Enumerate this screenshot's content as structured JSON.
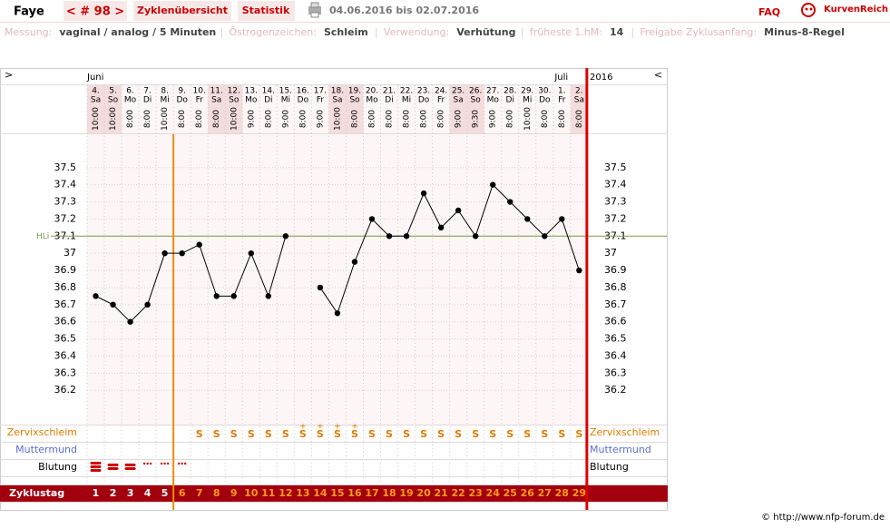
{
  "header": {
    "name": "Faye",
    "cycle_nav": "< # 98 >",
    "tabs": [
      "Zyklenübersicht",
      "Statistik"
    ],
    "period": "04.06.2016 bis 02.07.2016",
    "faq": "FAQ",
    "brand": "KurvenReich"
  },
  "info": [
    {
      "label": "Messung:",
      "value": "vaginal / analog / 5 Minuten"
    },
    {
      "label": "Östrogenzeichen:",
      "value": "Schleim"
    },
    {
      "label": "Verwendung:",
      "value": "Verhütung"
    },
    {
      "label": "früheste 1.hM:",
      "value": "14"
    },
    {
      "label": "Freigabe Zyklusanfang:",
      "value": "Minus-8-Regel"
    }
  ],
  "chart_data": {
    "type": "line",
    "nav_left": ">",
    "nav_right": "<",
    "months": [
      "Juni",
      "Juli"
    ],
    "year": "2016",
    "categories": [
      "4.",
      "5.",
      "6.",
      "7.",
      "8.",
      "9.",
      "10.",
      "11.",
      "12.",
      "13.",
      "14.",
      "15.",
      "16.",
      "17.",
      "18.",
      "19.",
      "20.",
      "21.",
      "22.",
      "23.",
      "24.",
      "25.",
      "26.",
      "27.",
      "28.",
      "29.",
      "30.",
      "1.",
      "2."
    ],
    "weekdays": [
      "Sa",
      "So",
      "Mo",
      "Di",
      "Mi",
      "Do",
      "Fr",
      "Sa",
      "So",
      "Mo",
      "Di",
      "Mi",
      "Do",
      "Fr",
      "Sa",
      "So",
      "Mo",
      "Di",
      "Mi",
      "Do",
      "Fr",
      "Sa",
      "So",
      "Mo",
      "Di",
      "Mi",
      "Do",
      "Fr",
      "Sa"
    ],
    "times": [
      "10:00",
      "10:00",
      "8:00",
      "8:00",
      "10:00",
      "8:00",
      "8:00",
      "8:00",
      "10:00",
      "9:00",
      "8:00",
      "9:00",
      "8:00",
      "9:00",
      "10:00",
      "8:00",
      "8:00",
      "8:00",
      "8:00",
      "8:00",
      "8:00",
      "9:00",
      "9:30",
      "9:00",
      "8:00",
      "10:00",
      "8:00",
      "8:00",
      "8:00"
    ],
    "series": [
      {
        "name": "Temperatur",
        "color": "#000000",
        "values": [
          36.75,
          36.7,
          36.6,
          36.7,
          37.0,
          37.0,
          37.05,
          36.75,
          36.75,
          37.0,
          36.75,
          37.1,
          null,
          36.8,
          36.65,
          36.95,
          37.2,
          37.1,
          37.1,
          37.35,
          37.15,
          37.25,
          37.1,
          37.4,
          37.3,
          37.2,
          37.1,
          37.2,
          36.9
        ]
      }
    ],
    "ylim": [
      36.0,
      37.7
    ],
    "yticks": [
      36.2,
      36.3,
      36.4,
      36.5,
      36.6,
      36.7,
      36.8,
      36.9,
      37,
      37.1,
      37.2,
      37.3,
      37.4,
      37.5
    ],
    "grid": true,
    "hli": {
      "label": "HLi",
      "value": 37.1,
      "color": "#7a9a4a"
    },
    "rows": {
      "mucus_label": "Zervixschleim",
      "cervix_label": "Muttermund",
      "bleeding_label": "Blutung",
      "cycle_label": "Zyklustag"
    },
    "mucus": [
      null,
      null,
      null,
      null,
      null,
      null,
      "S",
      "S",
      "S",
      "S",
      "S",
      "S",
      "S",
      "S",
      "S",
      "S",
      "S",
      "S",
      "S",
      "S",
      "S",
      "S",
      "S",
      "S",
      "S",
      "S",
      "S",
      "S",
      "S"
    ],
    "mucus_plus": [
      null,
      null,
      null,
      null,
      null,
      null,
      null,
      null,
      null,
      null,
      null,
      null,
      "+",
      "+",
      "+",
      "+",
      null,
      null,
      null,
      null,
      null,
      null,
      null,
      null,
      null,
      null,
      null,
      null,
      null
    ],
    "cycle_days": [
      1,
      2,
      3,
      4,
      5,
      6,
      7,
      8,
      9,
      10,
      11,
      12,
      13,
      14,
      15,
      16,
      17,
      18,
      19,
      20,
      21,
      22,
      23,
      24,
      25,
      26,
      27,
      28,
      29
    ]
  },
  "footer": "© http://www.nfp-forum.de"
}
